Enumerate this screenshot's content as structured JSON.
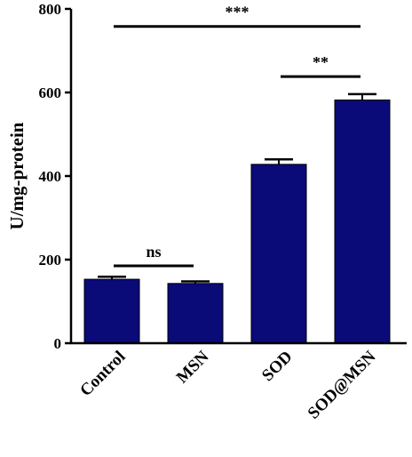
{
  "chart_data": {
    "type": "bar",
    "categories": [
      "Control",
      "MSN",
      "SOD",
      "SOD@MSN"
    ],
    "values": [
      153,
      143,
      428,
      582
    ],
    "errors": [
      6,
      5,
      12,
      14
    ],
    "title": "",
    "xlabel": "",
    "ylabel": "U/mg-protein",
    "ylim": [
      0,
      800
    ],
    "yticks": [
      "0",
      "200",
      "400",
      "600",
      "800"
    ],
    "grid": false,
    "bar_color": "#0a0a78",
    "significance": [
      {
        "from": 0,
        "to": 1,
        "label": "ns",
        "y": 185
      },
      {
        "from": 2,
        "to": 3,
        "label": "**",
        "y": 638
      },
      {
        "from": 0,
        "to": 3,
        "label": "***",
        "y": 758
      }
    ]
  }
}
